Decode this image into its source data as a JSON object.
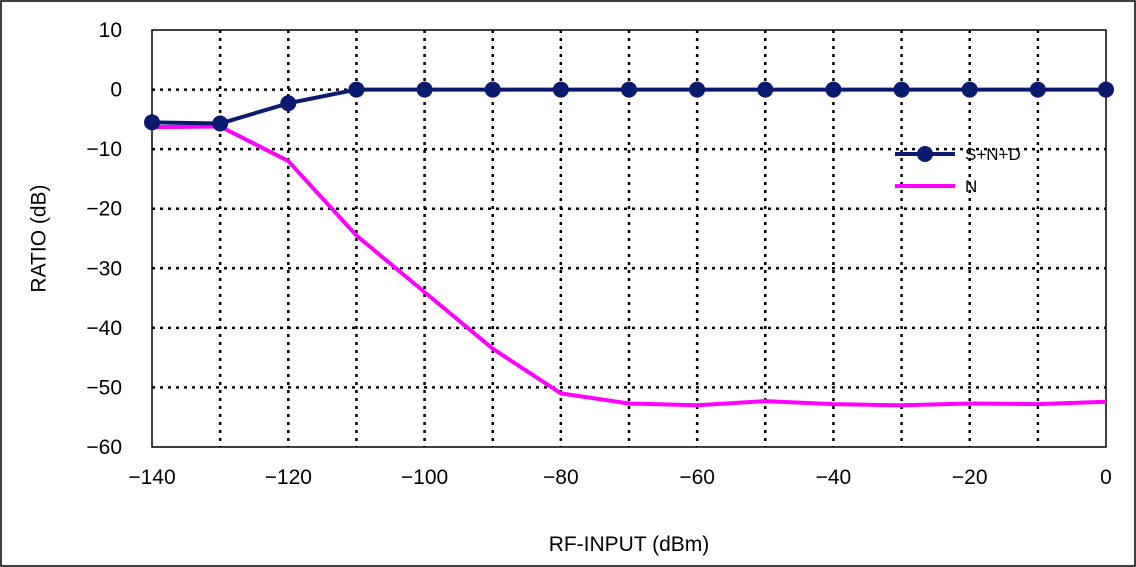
{
  "chart_data": {
    "type": "line",
    "xlabel": "RF-INPUT (dBm)",
    "ylabel": "RATIO (dB)",
    "xlim": [
      -140,
      0
    ],
    "ylim": [
      -60,
      10
    ],
    "x_ticks": [
      -140,
      -130,
      -120,
      -110,
      -100,
      -90,
      -80,
      -70,
      -60,
      -50,
      -40,
      -30,
      -20,
      -10,
      0
    ],
    "x_tick_labels": [
      "-140",
      "",
      "-120",
      "",
      "-100",
      "",
      "-80",
      "",
      "-60",
      "",
      "-40",
      "",
      "-20",
      "",
      "0"
    ],
    "y_ticks": [
      10,
      0,
      -10,
      -20,
      -30,
      -40,
      -50,
      -60
    ],
    "y_tick_labels": [
      "10",
      "0",
      "-10",
      "-20",
      "-30",
      "-40",
      "-50",
      "-60"
    ],
    "grid": true,
    "grid_style": "dotted",
    "legend_position": "right",
    "x": [
      -140,
      -130,
      -120,
      -110,
      -100,
      -90,
      -80,
      -70,
      -60,
      -50,
      -40,
      -30,
      -20,
      -10,
      0
    ],
    "series": [
      {
        "name": "S+N+D",
        "color": "#0a1a6e",
        "marker": "circle",
        "values": [
          -5.5,
          -5.7,
          -2.3,
          0,
          0,
          0,
          0,
          0,
          0,
          0,
          0,
          0,
          0,
          0,
          0
        ]
      },
      {
        "name": "N",
        "color": "#ff00ff",
        "marker": "none",
        "values": [
          -6.3,
          -6.2,
          -12,
          -24.5,
          -34,
          -43.5,
          -51,
          -52.7,
          -53,
          -52.3,
          -52.8,
          -53,
          -52.7,
          -52.8,
          -52.4
        ]
      }
    ]
  }
}
